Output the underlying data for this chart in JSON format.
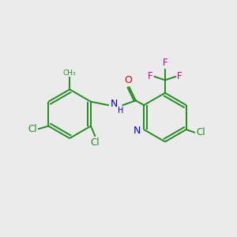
{
  "background_color": "#ebebeb",
  "bond_color": "#228B22",
  "nitrogen_color": "#0000CC",
  "oxygen_color": "#EE0000",
  "fluorine_color": "#CC0088",
  "chlorine_color": "#228B22",
  "text_color_green": "#228B22",
  "text_color_blue": "#0000CC",
  "text_color_red": "#EE0000",
  "text_color_pink": "#CC0088",
  "figsize": [
    3.0,
    3.0
  ],
  "dpi": 100,
  "lw": 1.4,
  "font_size_atom": 8.5,
  "font_size_small": 7.5,
  "xlim": [
    0,
    10
  ],
  "ylim": [
    0,
    10
  ]
}
